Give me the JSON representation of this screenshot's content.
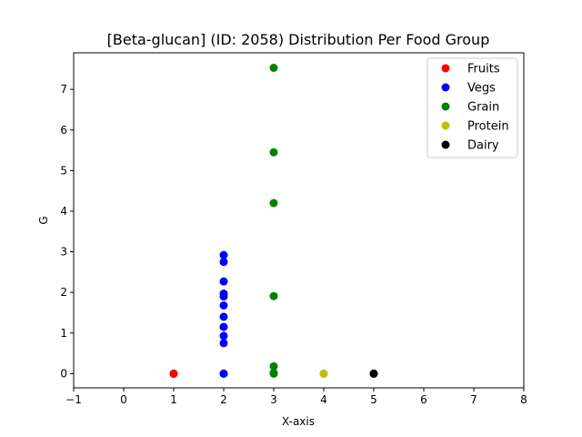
{
  "chart_data": {
    "type": "scatter",
    "title": "[Beta-glucan] (ID: 2058) Distribution Per Food Group",
    "xlabel": "X-axis",
    "ylabel": "G",
    "xlim": [
      -1,
      8
    ],
    "ylim": [
      -0.35,
      7.9
    ],
    "xticks": [
      -1,
      0,
      1,
      2,
      3,
      4,
      5,
      6,
      7,
      8
    ],
    "yticks": [
      0,
      1,
      2,
      3,
      4,
      5,
      6,
      7
    ],
    "grid": false,
    "legend_position": "top-right",
    "series": [
      {
        "name": "Fruits",
        "color": "#ff0000",
        "points": [
          [
            1,
            0
          ],
          [
            1,
            0
          ],
          [
            1,
            0
          ]
        ]
      },
      {
        "name": "Vegs",
        "color": "#0000ff",
        "points": [
          [
            2,
            2.92
          ],
          [
            2,
            2.75
          ],
          [
            2,
            2.27
          ],
          [
            2,
            1.97
          ],
          [
            2,
            1.9
          ],
          [
            2,
            1.68
          ],
          [
            2,
            1.4
          ],
          [
            2,
            1.15
          ],
          [
            2,
            0.93
          ],
          [
            2,
            0.75
          ],
          [
            2,
            0
          ],
          [
            2,
            0
          ]
        ]
      },
      {
        "name": "Grain",
        "color": "#008000",
        "points": [
          [
            3,
            7.53
          ],
          [
            3,
            5.45
          ],
          [
            3,
            4.2
          ],
          [
            3,
            1.91
          ],
          [
            3,
            0.18
          ],
          [
            3,
            0.02
          ],
          [
            3,
            0
          ]
        ]
      },
      {
        "name": "Protein",
        "color": "#bfbf00",
        "points": [
          [
            4,
            0
          ],
          [
            4,
            0
          ]
        ]
      },
      {
        "name": "Dairy",
        "color": "#000000",
        "points": [
          [
            5,
            0
          ],
          [
            5,
            0
          ]
        ]
      }
    ]
  }
}
